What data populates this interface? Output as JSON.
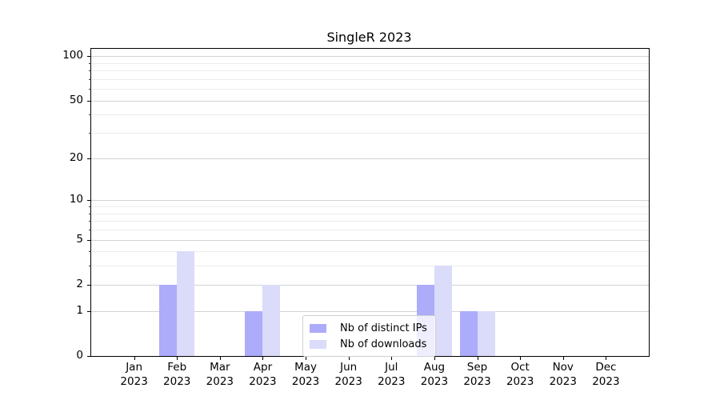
{
  "chart_data": {
    "type": "bar",
    "title": "SingleR 2023",
    "categories": [
      "Jan",
      "Feb",
      "Mar",
      "Apr",
      "May",
      "Jun",
      "Jul",
      "Aug",
      "Sep",
      "Oct",
      "Nov",
      "Dec"
    ],
    "category_year": "2023",
    "series": [
      {
        "name": "Nb of distinct IPs",
        "color": "#acacfa",
        "values": [
          0,
          2,
          0,
          1,
          0,
          0,
          0,
          2,
          1,
          0,
          0,
          0
        ]
      },
      {
        "name": "Nb of downloads",
        "color": "#dbdbfa",
        "values": [
          0,
          4,
          0,
          2,
          0,
          0,
          0,
          3,
          1,
          0,
          0,
          0
        ]
      }
    ],
    "yscale": "log10(1+x)",
    "ylim": [
      0,
      112
    ],
    "y_major_ticks": [
      0,
      1,
      2,
      5,
      10,
      20,
      50,
      100
    ],
    "y_minor_gridlines": [
      3,
      4,
      6,
      7,
      8,
      9,
      30,
      40,
      60,
      70,
      80,
      90
    ],
    "grid": "horizontal",
    "legend_position": "lower-center-right-inside"
  },
  "colors": {
    "bar_distinct_ips": "#acacfa",
    "bar_downloads": "#dbdbfa",
    "grid_major": "#d2d2d2",
    "grid_minor": "#ececec",
    "spine": "#000000"
  }
}
